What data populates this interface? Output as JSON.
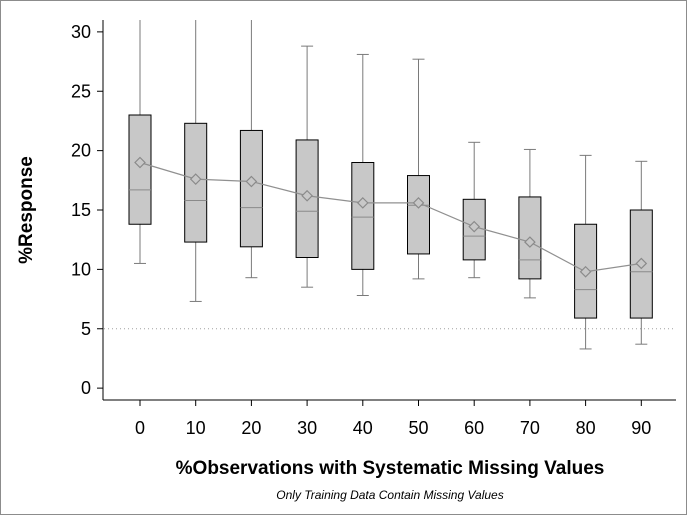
{
  "chart_data": {
    "type": "box",
    "xlabel": "%Observations with Systematic Missing Values",
    "ylabel": "%Response",
    "footnote": "Only Training Data Contain Missing Values",
    "categories": [
      "0",
      "10",
      "20",
      "30",
      "40",
      "50",
      "60",
      "70",
      "80",
      "90"
    ],
    "ylim": [
      -1,
      31
    ],
    "yticks": [
      "0",
      "5",
      "10",
      "15",
      "20",
      "25",
      "30"
    ],
    "reference_line": 5,
    "boxes": [
      {
        "min": 10.5,
        "q1": 13.8,
        "median": 16.7,
        "q3": 23.0,
        "max": 31,
        "mean": 19.0
      },
      {
        "min": 7.3,
        "q1": 12.3,
        "median": 15.8,
        "q3": 22.3,
        "max": 31,
        "mean": 17.6
      },
      {
        "min": 9.3,
        "q1": 11.9,
        "median": 15.2,
        "q3": 21.7,
        "max": 31,
        "mean": 17.4
      },
      {
        "min": 8.5,
        "q1": 11.0,
        "median": 14.9,
        "q3": 20.9,
        "max": 28.8,
        "mean": 16.2
      },
      {
        "min": 7.8,
        "q1": 10.0,
        "median": 14.4,
        "q3": 19.0,
        "max": 28.1,
        "mean": 15.6
      },
      {
        "min": 9.2,
        "q1": 11.3,
        "median": 15.4,
        "q3": 17.9,
        "max": 27.7,
        "mean": 15.6
      },
      {
        "min": 9.3,
        "q1": 10.8,
        "median": 12.8,
        "q3": 15.9,
        "max": 20.7,
        "mean": 13.6
      },
      {
        "min": 7.6,
        "q1": 9.2,
        "median": 10.8,
        "q3": 16.1,
        "max": 20.1,
        "mean": 12.3
      },
      {
        "min": 3.3,
        "q1": 5.9,
        "median": 8.3,
        "q3": 13.8,
        "max": 19.6,
        "mean": 9.8
      },
      {
        "min": 3.7,
        "q1": 5.9,
        "median": 9.8,
        "q3": 15.0,
        "max": 19.1,
        "mean": 10.5
      }
    ],
    "colors": {
      "box_fill": "#c8c8c8",
      "box_stroke": "#000000",
      "whisker": "#7a7a7a",
      "mean_line": "#909090",
      "reference": "#a0a0a0"
    }
  }
}
